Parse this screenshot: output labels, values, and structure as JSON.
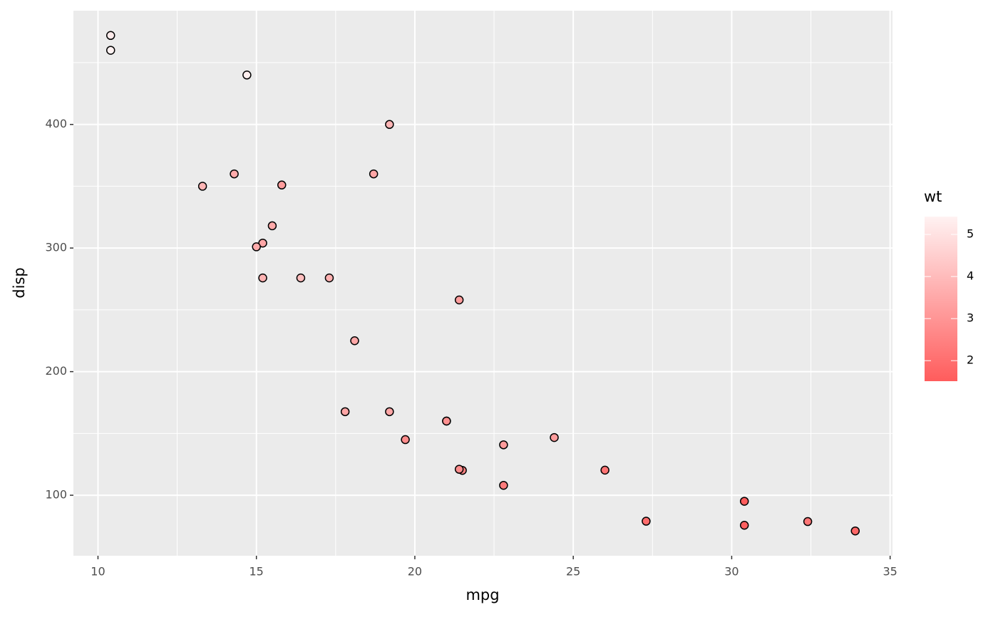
{
  "chart_data": {
    "type": "scatter",
    "x_label": "mpg",
    "y_label": "disp",
    "x": [
      21.0,
      21.0,
      22.8,
      21.4,
      18.7,
      18.1,
      14.3,
      24.4,
      22.8,
      19.2,
      17.8,
      16.4,
      17.3,
      15.2,
      10.4,
      10.4,
      14.7,
      32.4,
      30.4,
      33.9,
      21.5,
      15.5,
      15.2,
      13.3,
      19.2,
      27.3,
      26.0,
      30.4,
      15.8,
      19.7,
      15.0,
      21.4
    ],
    "y": [
      160,
      160,
      108,
      258,
      360,
      225,
      360,
      146.7,
      140.8,
      167.6,
      167.6,
      275.8,
      275.8,
      275.8,
      472,
      460,
      440,
      78.7,
      75.7,
      71.1,
      120.1,
      318,
      304,
      350,
      400,
      79,
      120.3,
      95.1,
      351,
      145,
      301,
      121
    ],
    "fill_values": [
      2.62,
      2.875,
      2.32,
      3.215,
      3.44,
      3.46,
      3.57,
      3.19,
      3.15,
      3.44,
      3.44,
      4.07,
      3.73,
      3.78,
      5.25,
      5.424,
      5.345,
      2.2,
      1.615,
      1.835,
      2.465,
      3.52,
      3.435,
      3.84,
      3.845,
      1.935,
      2.14,
      1.513,
      3.17,
      2.77,
      3.57,
      2.78
    ],
    "fill_scale": {
      "name": "wt",
      "low": "#ff5c5c",
      "high": "#fff2f2",
      "limits": [
        1.513,
        5.424
      ],
      "ticks": [
        2,
        3,
        4,
        5
      ]
    },
    "xlim": [
      9.225,
      35.075
    ],
    "xticks": [
      10,
      15,
      20,
      25,
      30,
      35
    ],
    "xminor": [
      12.5,
      17.5,
      22.5,
      27.5,
      32.5
    ],
    "ylim": [
      51.055,
      492.045
    ],
    "yticks": [
      100,
      200,
      300,
      400
    ],
    "yminor": [
      150,
      250,
      350,
      450
    ],
    "grid": true,
    "panel_color": "#ebebeb",
    "point_stroke": "#000000"
  }
}
